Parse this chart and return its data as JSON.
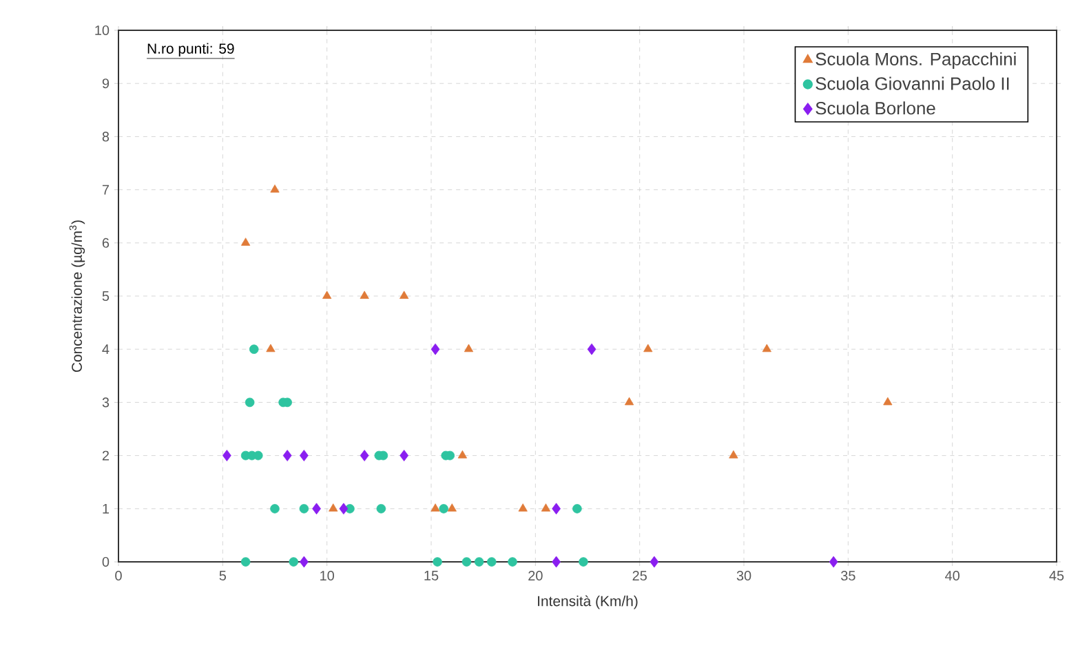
{
  "chart_data": {
    "type": "scatter",
    "xlabel": "Intensità (Km/h)",
    "ylabel": "Concentrazione (µg/m$^{3}$)",
    "annotations": [
      "N.ro punti: 59"
    ],
    "xlim": [
      0,
      45
    ],
    "xticks": [
      0,
      5,
      10,
      15,
      20,
      25,
      30,
      35,
      40,
      45
    ],
    "ylim": [
      0,
      10
    ],
    "yticks": [
      0,
      1,
      2,
      3,
      4,
      5,
      6,
      7,
      8,
      9,
      10
    ],
    "grid": true,
    "legend": "top right",
    "series": [
      {
        "name": "Scuola Mons. Papacchini",
        "color": "#e07b39",
        "marker": "triangle",
        "x": [
          7.5,
          6.1,
          10.0,
          11.8,
          13.7,
          7.3,
          16.8,
          25.4,
          31.1,
          24.5,
          36.9,
          16.5,
          29.5,
          10.3,
          15.2,
          16.0,
          19.4,
          20.5
        ],
        "values": [
          7,
          6,
          5,
          5,
          5,
          4,
          4,
          4,
          4,
          3,
          3,
          2,
          2,
          1,
          1,
          1,
          1,
          1
        ]
      },
      {
        "name": "Scuola Giovanni Paolo II",
        "color": "#2ec4a0",
        "marker": "circle",
        "x": [
          6.5,
          6.3,
          7.9,
          8.1,
          6.1,
          6.4,
          6.7,
          12.5,
          12.7,
          15.7,
          15.9,
          7.5,
          8.9,
          11.1,
          12.6,
          15.6,
          22.0,
          6.1,
          8.4,
          15.3,
          16.7,
          17.3,
          17.9,
          18.9,
          22.3
        ],
        "values": [
          4,
          3,
          3,
          3,
          2,
          2,
          2,
          2,
          2,
          2,
          2,
          1,
          1,
          1,
          1,
          1,
          1,
          0,
          0,
          0,
          0,
          0,
          0,
          0,
          0
        ]
      },
      {
        "name": "Scuola Borlone",
        "color": "#8a1ef0",
        "marker": "diamond",
        "x": [
          15.2,
          22.7,
          5.2,
          8.1,
          8.9,
          11.8,
          13.7,
          9.5,
          10.8,
          21.0,
          8.9,
          21.0,
          25.7,
          34.3
        ],
        "values": [
          4,
          4,
          2,
          2,
          2,
          2,
          2,
          1,
          1,
          1,
          0,
          0,
          0,
          0
        ]
      }
    ]
  }
}
